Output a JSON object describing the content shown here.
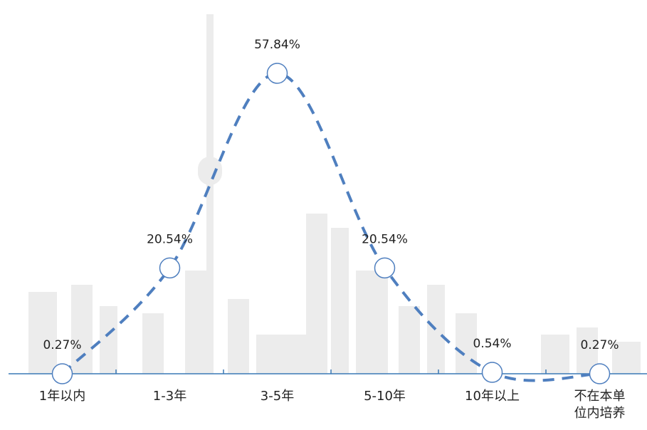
{
  "chart_data": {
    "type": "line",
    "categories": [
      "1年以内",
      "1-3年",
      "3-5年",
      "5-10年",
      "10年以上",
      "不在本单位内培养"
    ],
    "values": [
      0.27,
      20.54,
      57.84,
      20.54,
      0.54,
      0.27
    ],
    "value_labels": [
      "0.27%",
      "20.54%",
      "57.84%",
      "20.54%",
      "0.54%",
      "0.27%"
    ],
    "color": "#4f7fbf"
  }
}
